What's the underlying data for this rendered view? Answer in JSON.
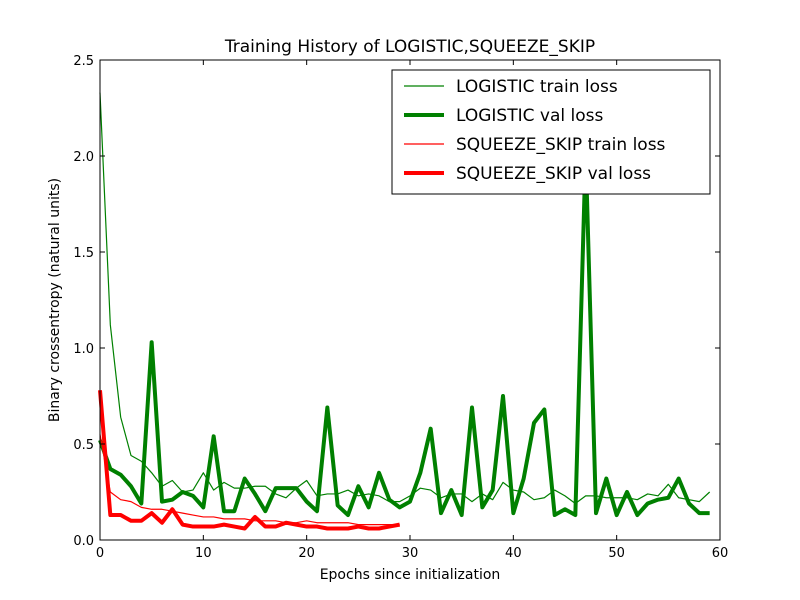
{
  "chart_data": {
    "type": "line",
    "title": "Training History of LOGISTIC,SQUEEZE_SKIP",
    "xlabel": "Epochs since initialization",
    "ylabel": "Binary crossentropy (natural units)",
    "xlim": [
      0,
      60
    ],
    "ylim": [
      0.0,
      2.5
    ],
    "xticks": [
      0,
      10,
      20,
      30,
      40,
      50,
      60
    ],
    "xtick_labels": [
      "0",
      "10",
      "20",
      "30",
      "40",
      "50",
      "60"
    ],
    "yticks": [
      0.0,
      0.5,
      1.0,
      1.5,
      2.0,
      2.5
    ],
    "ytick_labels": [
      "0.0",
      "0.5",
      "1.0",
      "1.5",
      "2.0",
      "2.5"
    ],
    "grid": false,
    "legend_position": "top-right",
    "series": [
      {
        "name": "LOGISTIC train loss",
        "color": "#008000",
        "style": "thin",
        "x": [
          0,
          1,
          2,
          3,
          4,
          5,
          6,
          7,
          8,
          9,
          10,
          11,
          12,
          13,
          14,
          15,
          16,
          17,
          18,
          19,
          20,
          21,
          22,
          23,
          24,
          25,
          26,
          27,
          28,
          29,
          30,
          31,
          32,
          33,
          34,
          35,
          36,
          37,
          38,
          39,
          40,
          41,
          42,
          43,
          44,
          45,
          46,
          47,
          48,
          49,
          50,
          51,
          52,
          53,
          54,
          55,
          56,
          57,
          58,
          59
        ],
        "y": [
          2.33,
          1.12,
          0.64,
          0.44,
          0.41,
          0.35,
          0.28,
          0.31,
          0.25,
          0.26,
          0.35,
          0.26,
          0.3,
          0.27,
          0.27,
          0.28,
          0.28,
          0.24,
          0.22,
          0.27,
          0.31,
          0.23,
          0.24,
          0.24,
          0.26,
          0.23,
          0.24,
          0.23,
          0.2,
          0.2,
          0.23,
          0.27,
          0.26,
          0.22,
          0.24,
          0.24,
          0.2,
          0.24,
          0.21,
          0.3,
          0.26,
          0.25,
          0.21,
          0.22,
          0.26,
          0.23,
          0.19,
          0.23,
          0.23,
          0.22,
          0.22,
          0.22,
          0.21,
          0.24,
          0.23,
          0.29,
          0.22,
          0.21,
          0.2,
          0.25
        ]
      },
      {
        "name": "LOGISTIC val loss",
        "color": "#008000",
        "style": "thick",
        "x": [
          0,
          1,
          2,
          3,
          4,
          5,
          6,
          7,
          8,
          9,
          10,
          11,
          12,
          13,
          14,
          15,
          16,
          17,
          18,
          19,
          20,
          21,
          22,
          23,
          24,
          25,
          26,
          27,
          28,
          29,
          30,
          31,
          32,
          33,
          34,
          35,
          36,
          37,
          38,
          39,
          40,
          41,
          42,
          43,
          44,
          45,
          46,
          47,
          48,
          49,
          50,
          51,
          52,
          53,
          54,
          55,
          56,
          57,
          58,
          59
        ],
        "y": [
          0.52,
          0.37,
          0.34,
          0.28,
          0.19,
          1.03,
          0.2,
          0.21,
          0.25,
          0.23,
          0.17,
          0.54,
          0.15,
          0.15,
          0.32,
          0.24,
          0.15,
          0.27,
          0.27,
          0.27,
          0.2,
          0.15,
          0.69,
          0.18,
          0.13,
          0.28,
          0.17,
          0.35,
          0.21,
          0.17,
          0.2,
          0.35,
          0.58,
          0.14,
          0.26,
          0.13,
          0.69,
          0.17,
          0.26,
          0.75,
          0.14,
          0.32,
          0.61,
          0.68,
          0.13,
          0.16,
          0.13,
          2.02,
          0.14,
          0.32,
          0.13,
          0.25,
          0.13,
          0.19,
          0.21,
          0.22,
          0.32,
          0.19,
          0.14,
          0.14
        ]
      },
      {
        "name": "SQUEEZE_SKIP train loss",
        "color": "#ff0000",
        "style": "thin",
        "x": [
          0,
          1,
          2,
          3,
          4,
          5,
          6,
          7,
          8,
          9,
          10,
          11,
          12,
          13,
          14,
          15,
          16,
          17,
          18,
          19,
          20,
          21,
          22,
          23,
          24,
          25,
          26,
          27,
          28,
          29
        ],
        "y": [
          0.55,
          0.25,
          0.21,
          0.2,
          0.17,
          0.16,
          0.16,
          0.15,
          0.14,
          0.13,
          0.12,
          0.12,
          0.11,
          0.11,
          0.11,
          0.1,
          0.1,
          0.1,
          0.09,
          0.09,
          0.1,
          0.09,
          0.09,
          0.09,
          0.09,
          0.08,
          0.08,
          0.08,
          0.08,
          0.08
        ]
      },
      {
        "name": "SQUEEZE_SKIP val loss",
        "color": "#ff0000",
        "style": "thick",
        "x": [
          0,
          1,
          2,
          3,
          4,
          5,
          6,
          7,
          8,
          9,
          10,
          11,
          12,
          13,
          14,
          15,
          16,
          17,
          18,
          19,
          20,
          21,
          22,
          23,
          24,
          25,
          26,
          27,
          28,
          29
        ],
        "y": [
          0.78,
          0.13,
          0.13,
          0.1,
          0.1,
          0.14,
          0.09,
          0.16,
          0.08,
          0.07,
          0.07,
          0.07,
          0.08,
          0.07,
          0.06,
          0.12,
          0.07,
          0.07,
          0.09,
          0.08,
          0.07,
          0.07,
          0.06,
          0.06,
          0.06,
          0.07,
          0.06,
          0.06,
          0.07,
          0.08
        ]
      }
    ]
  }
}
